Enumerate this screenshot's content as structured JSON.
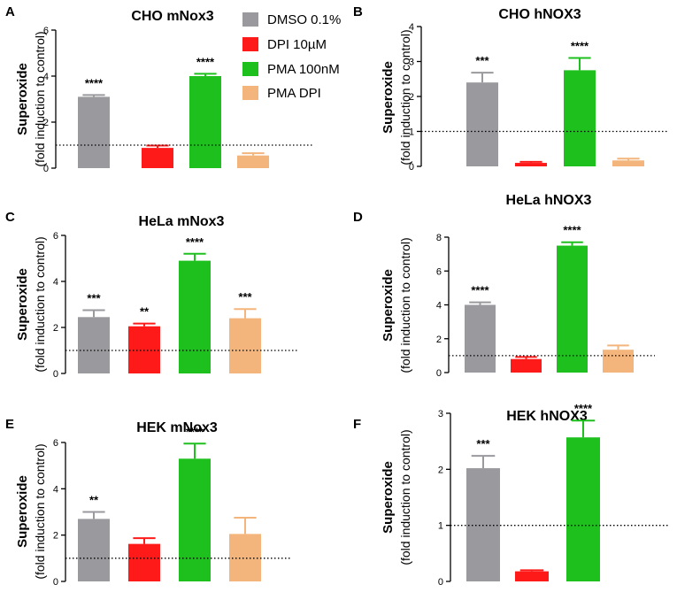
{
  "legend": [
    {
      "label": "DMSO 0.1%",
      "color": "#9a9a9e"
    },
    {
      "label": "DPI 10µM",
      "color": "#ff1a1a"
    },
    {
      "label": "PMA 100nM",
      "color": "#1ec01e"
    },
    {
      "label": "PMA DPI",
      "color": "#f3b57b"
    }
  ],
  "ylabel_line1": "Superoxide",
  "ylabel_line2": "(fold induction to control)",
  "chart_data": [
    {
      "panel": "A",
      "type": "bar",
      "title": "CHO mNox3",
      "ylim": [
        0,
        6
      ],
      "yticks": [
        0,
        2,
        4,
        6
      ],
      "reference_line": 1,
      "categories": [
        "DMSO 0.1%",
        "DPI 10µM",
        "PMA 100nM",
        "PMA DPI"
      ],
      "values": [
        3.1,
        0.88,
        4.0,
        0.55
      ],
      "errors": [
        0.08,
        0.1,
        0.1,
        0.1
      ],
      "significance": [
        "****",
        "",
        "****",
        ""
      ]
    },
    {
      "panel": "B",
      "type": "bar",
      "title": "CHO hNOX3",
      "ylim": [
        0,
        4
      ],
      "yticks": [
        0,
        1,
        2,
        3,
        4
      ],
      "reference_line": 1,
      "categories": [
        "DMSO 0.1%",
        "DPI 10µM",
        "PMA 100nM",
        "PMA DPI"
      ],
      "values": [
        2.4,
        0.1,
        2.75,
        0.17
      ],
      "errors": [
        0.28,
        0.03,
        0.35,
        0.05
      ],
      "significance": [
        "***",
        "",
        "****",
        ""
      ]
    },
    {
      "panel": "C",
      "type": "bar",
      "title": "HeLa mNox3",
      "ylim": [
        0,
        6
      ],
      "yticks": [
        0,
        2,
        4,
        6
      ],
      "reference_line": 1,
      "categories": [
        "DMSO 0.1%",
        "DPI 10µM",
        "PMA 100nM",
        "PMA DPI"
      ],
      "values": [
        2.45,
        2.05,
        4.9,
        2.4
      ],
      "errors": [
        0.3,
        0.12,
        0.3,
        0.4
      ],
      "significance": [
        "***",
        "**",
        "****",
        "***"
      ]
    },
    {
      "panel": "D",
      "type": "bar",
      "title": "HeLa hNOX3",
      "ylim": [
        0,
        8
      ],
      "yticks": [
        0,
        2,
        4,
        6,
        8
      ],
      "reference_line": 1,
      "categories": [
        "DMSO 0.1%",
        "DPI 10µM",
        "PMA 100nM",
        "PMA DPI"
      ],
      "values": [
        4.0,
        0.8,
        7.5,
        1.35
      ],
      "errors": [
        0.15,
        0.12,
        0.2,
        0.25
      ],
      "significance": [
        "****",
        "",
        "****",
        ""
      ]
    },
    {
      "panel": "E",
      "type": "bar",
      "title": "HEK mNox3",
      "ylim": [
        0,
        6
      ],
      "yticks": [
        0,
        2,
        4,
        6
      ],
      "reference_line": 1,
      "categories": [
        "DMSO 0.1%",
        "DPI 10µM",
        "PMA 100nM",
        "PMA DPI"
      ],
      "values": [
        2.7,
        1.62,
        5.3,
        2.05
      ],
      "errors": [
        0.3,
        0.25,
        0.65,
        0.7
      ],
      "significance": [
        "**",
        "",
        "****",
        ""
      ]
    },
    {
      "panel": "F",
      "type": "bar",
      "title": "HEK hNOX3",
      "ylim": [
        0,
        3
      ],
      "yticks": [
        0,
        1,
        2,
        3
      ],
      "reference_line": 1,
      "categories": [
        "DMSO 0.1%",
        "DPI 10µM",
        "PMA 100nM"
      ],
      "values": [
        2.02,
        0.18,
        2.57
      ],
      "errors": [
        0.22,
        0.02,
        0.3
      ],
      "significance": [
        "***",
        "",
        "****"
      ]
    }
  ]
}
